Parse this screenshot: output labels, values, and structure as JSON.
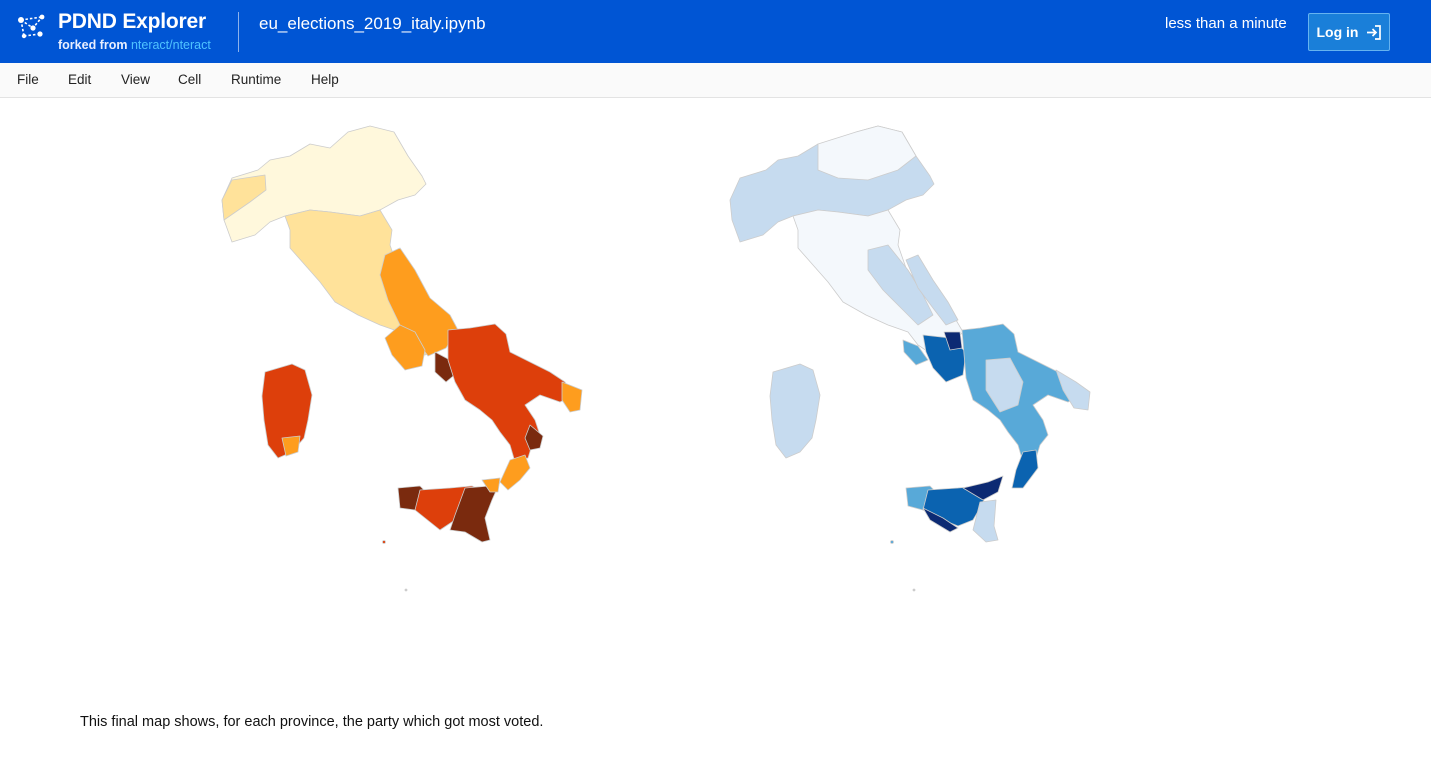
{
  "header": {
    "app_name": "PDND Explorer",
    "fork_prefix": "forked from ",
    "fork_link": "nteract/nteract",
    "notebook_title": "eu_elections_2019_italy.ipynb",
    "saved_status": "less than a minute",
    "login_label": "Log in",
    "background_color": "#0055d4"
  },
  "menu": [
    "File",
    "Edit",
    "View",
    "Cell",
    "Runtime",
    "Help"
  ],
  "output": {
    "maps": [
      {
        "name": "orange-choropleth",
        "colors": [
          "#fff8dc",
          "#ffe29a",
          "#fe9d1e",
          "#dd3f0b",
          "#7a2a0e"
        ]
      },
      {
        "name": "blue-choropleth",
        "colors": [
          "#f4f8fc",
          "#c6dbef",
          "#58a9d8",
          "#0b63b0",
          "#0c2a73"
        ]
      }
    ],
    "caption": "This final map shows, for each province, the party which got most voted."
  }
}
